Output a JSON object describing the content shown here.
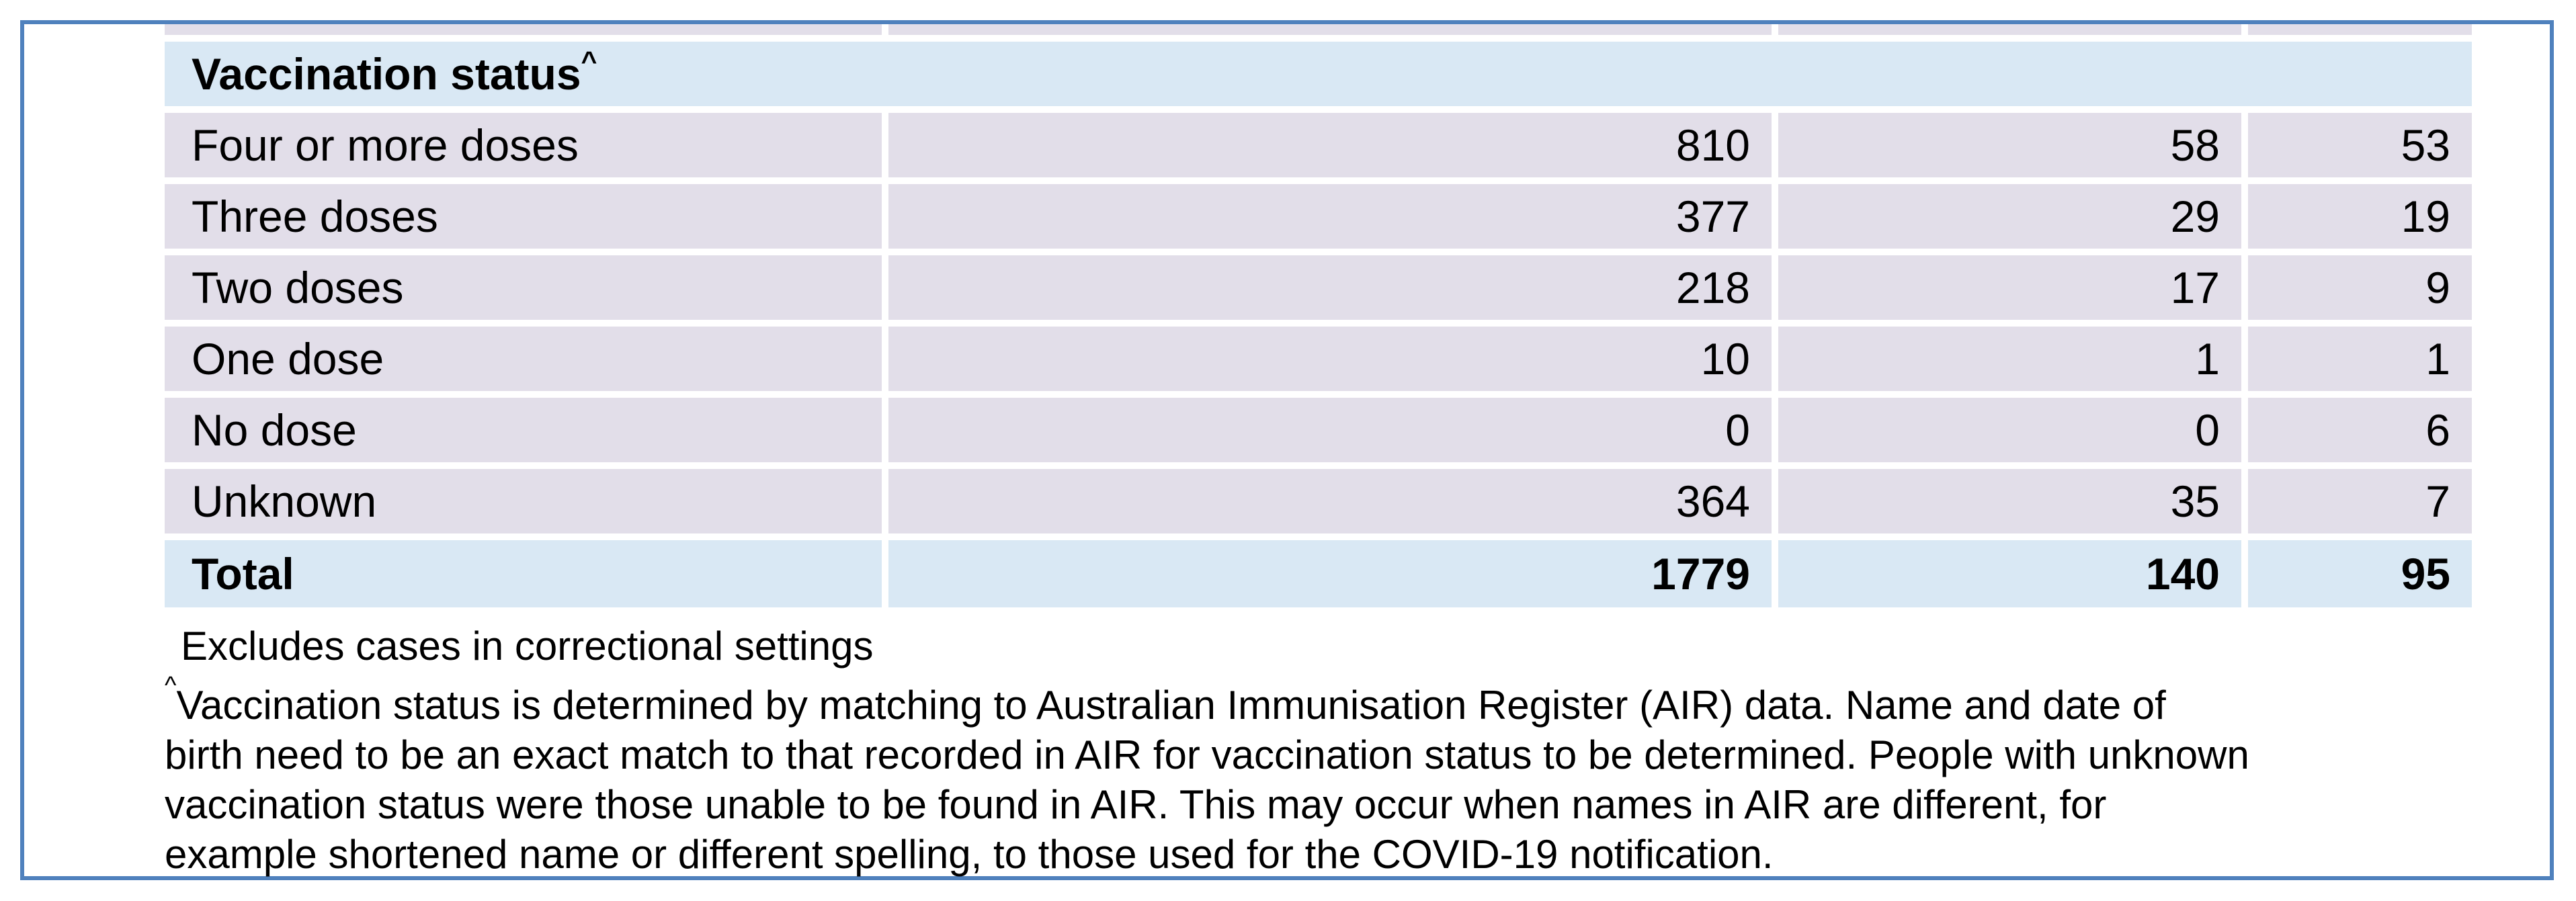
{
  "colors": {
    "frame_border": "#4F81BD",
    "row_lavender": "#E2DEE9",
    "row_blue": "#D9E8F4",
    "text": "#000000",
    "page_bg": "#FFFFFF"
  },
  "table": {
    "header": {
      "label": "Vaccination status",
      "sup": "^"
    },
    "rows": [
      {
        "label": "Four or more doses",
        "values": [
          "810",
          "58",
          "53"
        ]
      },
      {
        "label": "Three doses",
        "values": [
          "377",
          "29",
          "19"
        ]
      },
      {
        "label": "Two doses",
        "values": [
          "218",
          "17",
          "9"
        ]
      },
      {
        "label": "One dose",
        "values": [
          "10",
          "1",
          "1"
        ]
      },
      {
        "label": "No dose",
        "values": [
          "0",
          "0",
          "6"
        ]
      },
      {
        "label": "Unknown",
        "values": [
          "364",
          "35",
          "7"
        ]
      }
    ],
    "total": {
      "label": "Total",
      "values": [
        "1779",
        "140",
        "95"
      ]
    }
  },
  "footnotes": {
    "note1": "Excludes cases in correctional settings",
    "note2_sup": "^",
    "note2_lines": [
      "Vaccination status is determined by matching to Australian Immunisation Register (AIR) data. Name and date of",
      "birth need to be an exact match to that recorded in AIR for vaccination status to be determined. People with unknown",
      "vaccination status were those unable to be found in AIR. This may occur when names in AIR are different, for",
      "example shortened name or different spelling, to those used for the COVID-19 notification."
    ]
  }
}
